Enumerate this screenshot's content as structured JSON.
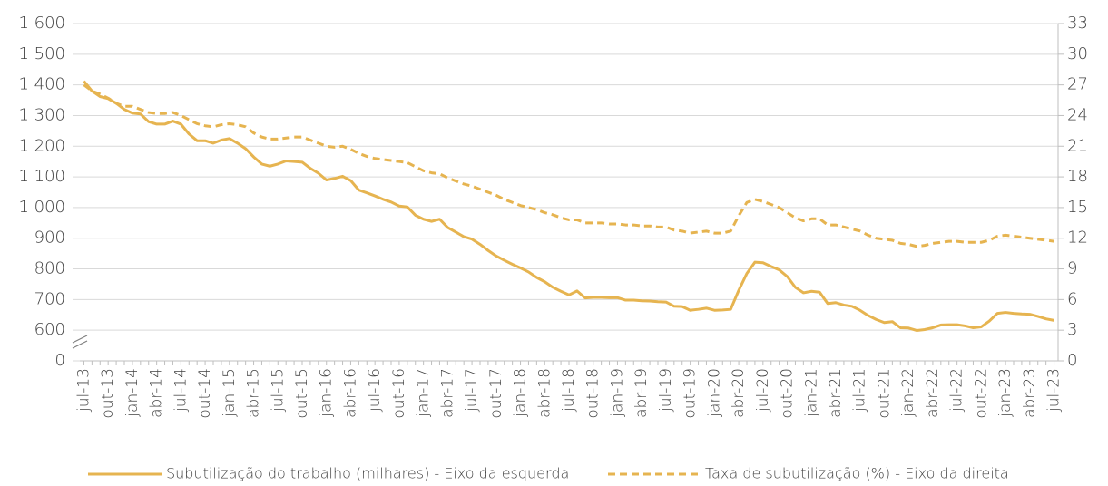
{
  "chart_data": {
    "type": "line",
    "categories": [
      "jul-13",
      null,
      null,
      "out-13",
      null,
      null,
      "jan-14",
      null,
      null,
      "abr-14",
      null,
      null,
      "jul-14",
      null,
      null,
      "out-14",
      null,
      null,
      "jan-15",
      null,
      null,
      "abr-15",
      null,
      null,
      "jul-15",
      null,
      null,
      "out-15",
      null,
      null,
      "jan-16",
      null,
      null,
      "abr-16",
      null,
      null,
      "jul-16",
      null,
      null,
      "out-16",
      null,
      null,
      "jan-17",
      null,
      null,
      "abr-17",
      null,
      null,
      "jul-17",
      null,
      null,
      "out-17",
      null,
      null,
      "jan-18",
      null,
      null,
      "abr-18",
      null,
      null,
      "jul-18",
      null,
      null,
      "out-18",
      null,
      null,
      "jan-19",
      null,
      null,
      "abr-19",
      null,
      null,
      "jul-19",
      null,
      null,
      "out-19",
      null,
      null,
      "jan-20",
      null,
      null,
      "abr-20",
      null,
      null,
      "jul-20",
      null,
      null,
      "out-20",
      null,
      null,
      "jan-21",
      null,
      null,
      "abr-21",
      null,
      null,
      "jul-21",
      null,
      null,
      "out-21",
      null,
      null,
      "jan-22",
      null,
      null,
      "abr-22",
      null,
      null,
      "jul-22",
      null,
      null,
      "out-22",
      null,
      null,
      "jan-23",
      null,
      null,
      "abr-23",
      null,
      null,
      "jul-23"
    ],
    "series": [
      {
        "name": "Subutilização do trabalho (milhares) - Eixo da esquerda",
        "color": "#e6b450",
        "style": "solid",
        "axis": "y",
        "values": [
          1412,
          1380,
          1362,
          1355,
          1340,
          1320,
          1308,
          1305,
          1280,
          1272,
          1272,
          1282,
          1272,
          1240,
          1218,
          1218,
          1210,
          1220,
          1225,
          1210,
          1192,
          1165,
          1142,
          1135,
          1142,
          1152,
          1150,
          1148,
          1128,
          1112,
          1090,
          1095,
          1102,
          1088,
          1057,
          1048,
          1038,
          1027,
          1018,
          1005,
          1002,
          975,
          962,
          955,
          962,
          935,
          920,
          905,
          897,
          880,
          860,
          842,
          828,
          815,
          803,
          790,
          772,
          758,
          740,
          727,
          715,
          728,
          705,
          707,
          707,
          706,
          706,
          698,
          698,
          696,
          695,
          693,
          692,
          678,
          677,
          665,
          668,
          672,
          665,
          666,
          668,
          730,
          785,
          822,
          820,
          808,
          797,
          775,
          740,
          722,
          727,
          724,
          687,
          690,
          682,
          678,
          665,
          648,
          635,
          625,
          628,
          608,
          607,
          595,
          602,
          608,
          617,
          618,
          618,
          614,
          608,
          611,
          630,
          655,
          658,
          655,
          653,
          652,
          645,
          637,
          632
        ]
      },
      {
        "name": "Taxa de subutilização (%) - Eixo da direita",
        "color": "#e6b450",
        "style": "dashed",
        "axis": "y2",
        "values": [
          27.0,
          26.4,
          26.1,
          25.7,
          25.2,
          24.9,
          24.9,
          24.6,
          24.3,
          24.2,
          24.2,
          24.3,
          24.0,
          23.6,
          23.2,
          23.0,
          22.9,
          23.1,
          23.2,
          23.1,
          22.9,
          22.3,
          21.9,
          21.7,
          21.7,
          21.8,
          21.9,
          21.9,
          21.6,
          21.3,
          21.0,
          20.9,
          21.0,
          20.7,
          20.3,
          20.0,
          19.8,
          19.7,
          19.6,
          19.5,
          19.4,
          19.0,
          18.6,
          18.4,
          18.3,
          17.9,
          17.6,
          17.3,
          17.1,
          16.8,
          16.5,
          16.2,
          15.8,
          15.5,
          15.2,
          15.0,
          14.8,
          14.5,
          14.3,
          14.0,
          13.8,
          13.8,
          13.5,
          13.5,
          13.5,
          13.4,
          13.4,
          13.3,
          13.3,
          13.2,
          13.2,
          13.1,
          13.1,
          12.8,
          12.7,
          12.5,
          12.6,
          12.7,
          12.5,
          12.5,
          12.7,
          14.2,
          15.5,
          15.8,
          15.6,
          15.3,
          15.0,
          14.5,
          14.0,
          13.7,
          13.9,
          13.9,
          13.3,
          13.3,
          13.1,
          12.9,
          12.7,
          12.3,
          12.0,
          11.9,
          11.8,
          11.5,
          11.4,
          11.2,
          11.3,
          11.5,
          11.6,
          11.7,
          11.7,
          11.6,
          11.6,
          11.6,
          11.8,
          12.2,
          12.3,
          12.2,
          12.1,
          12.0,
          11.9,
          11.8,
          11.7
        ]
      }
    ],
    "ylim": [
      0,
      1600
    ],
    "y_break": [
      0,
      600
    ],
    "yticks": [
      0,
      600,
      700,
      800,
      900,
      {
        "value": 1000,
        "label": "1 000"
      },
      {
        "value": 1100,
        "label": "1 100"
      },
      {
        "value": 1200,
        "label": "1 200"
      },
      {
        "value": 1300,
        "label": "1 300"
      },
      {
        "value": 1400,
        "label": "1 400"
      },
      {
        "value": 1500,
        "label": "1 500"
      },
      {
        "value": 1600,
        "label": "1 600"
      }
    ],
    "y2lim": [
      0,
      33
    ],
    "y2ticks": [
      0,
      3,
      6,
      9,
      12,
      15,
      18,
      21,
      24,
      27,
      30,
      33
    ],
    "grid": true,
    "legend": "bottom"
  }
}
